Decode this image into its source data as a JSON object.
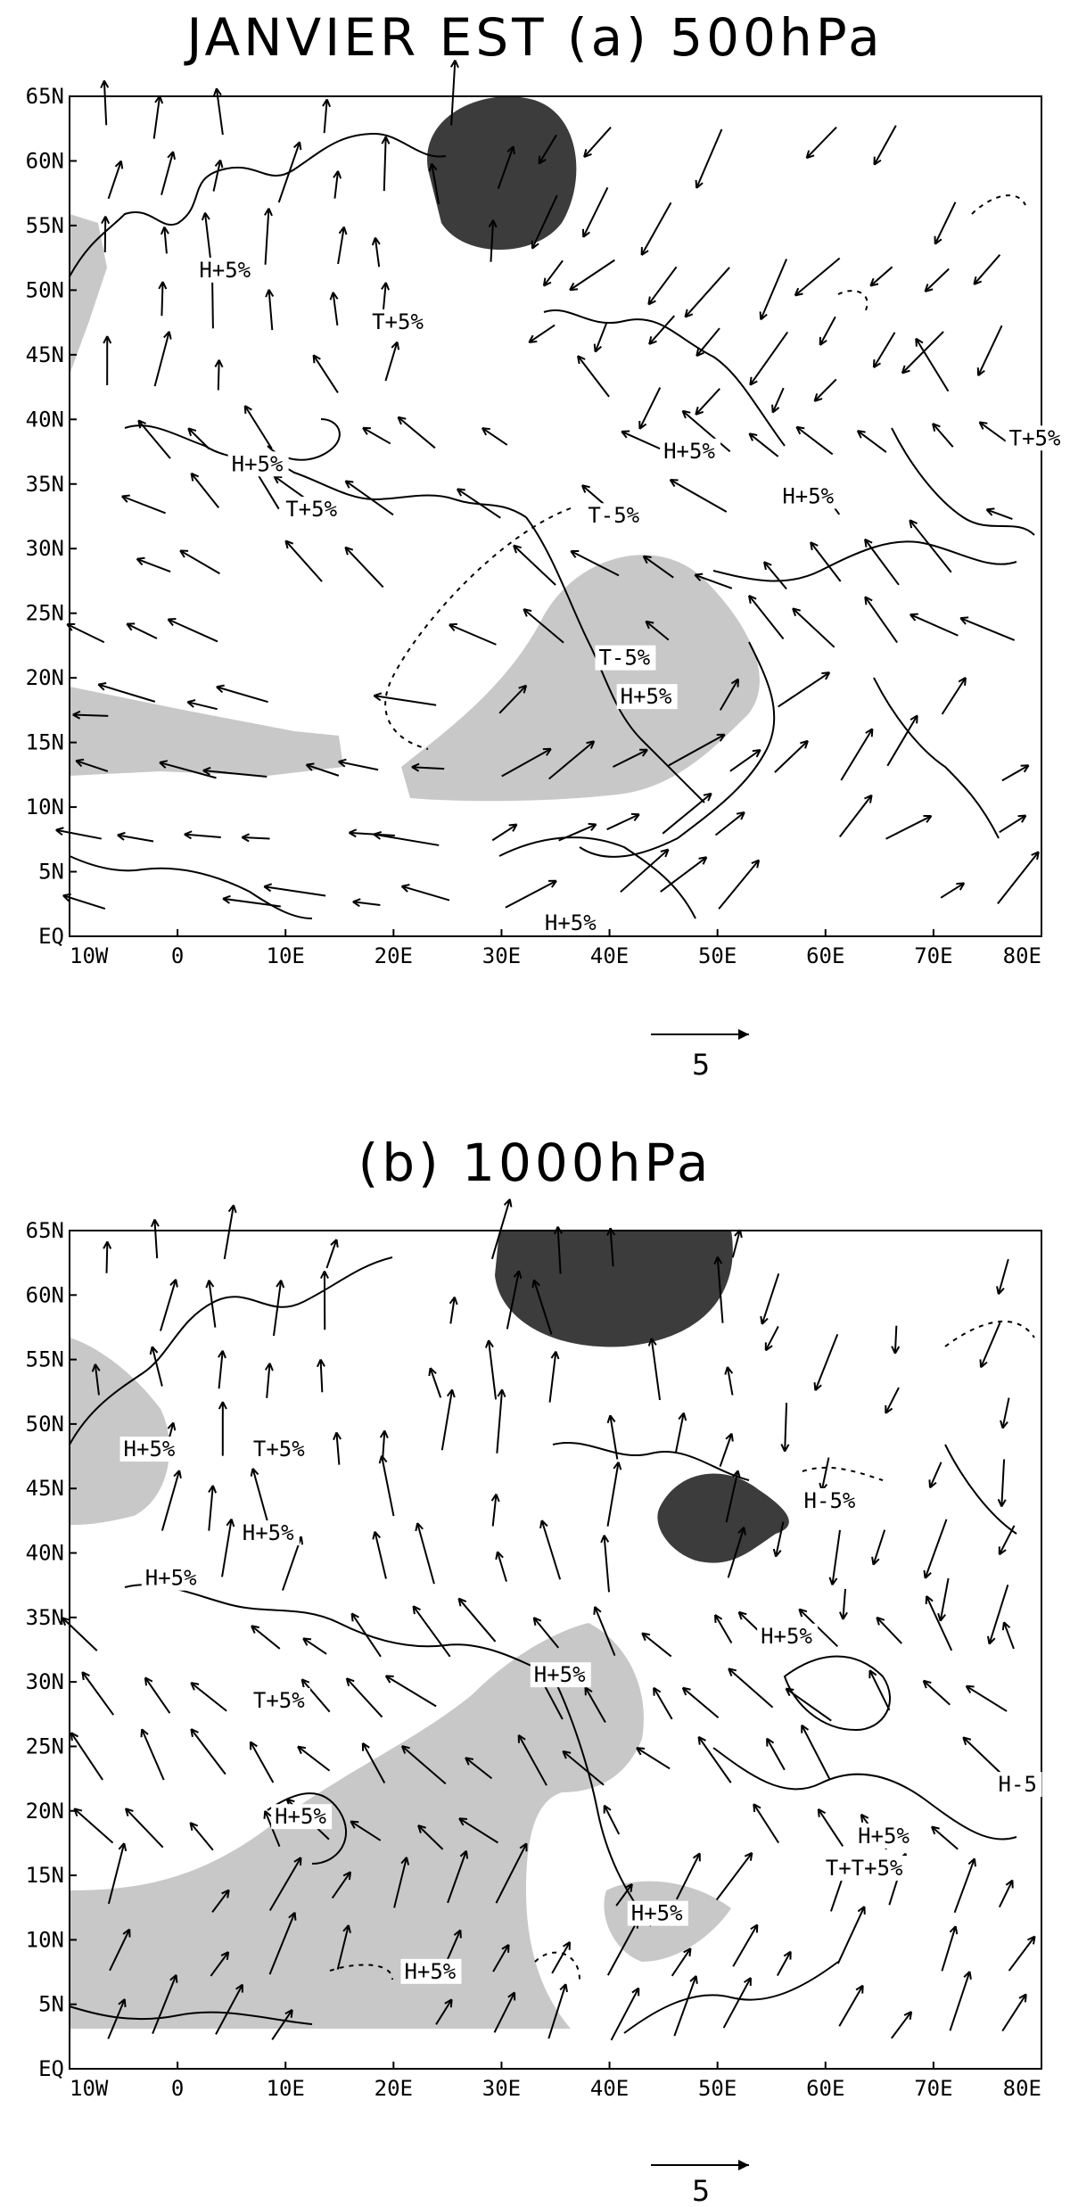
{
  "panel_a": {
    "title": "JANVIER EST (a) 500hPa",
    "lat_ticks": [
      "65N",
      "60N",
      "55N",
      "50N",
      "45N",
      "40N",
      "35N",
      "30N",
      "25N",
      "20N",
      "15N",
      "10N",
      "5N",
      "EQ"
    ],
    "lon_ticks": [
      "10W",
      "0",
      "10E",
      "20E",
      "30E",
      "40E",
      "50E",
      "60E",
      "70E",
      "80E"
    ],
    "labels": [
      {
        "text": "H+5%",
        "lon": 2,
        "lat": 51
      },
      {
        "text": "T+5%",
        "lon": 18,
        "lat": 47
      },
      {
        "text": "H+5%",
        "lon": 5,
        "lat": 36
      },
      {
        "text": "T+5%",
        "lon": 10,
        "lat": 32.5
      },
      {
        "text": "H+5%",
        "lon": 45,
        "lat": 37
      },
      {
        "text": "T+5%",
        "lon": 77,
        "lat": 38
      },
      {
        "text": "H+5%",
        "lon": 56,
        "lat": 33.5
      },
      {
        "text": "T-5%",
        "lon": 38,
        "lat": 32
      },
      {
        "text": "T-5%",
        "lon": 39,
        "lat": 21
      },
      {
        "text": "H+5%",
        "lon": 41,
        "lat": 18
      },
      {
        "text": "H+5%",
        "lon": 34,
        "lat": 0.5
      }
    ],
    "reference_vector": "5"
  },
  "panel_b": {
    "title": "(b) 1000hPa",
    "lat_ticks": [
      "65N",
      "60N",
      "55N",
      "50N",
      "45N",
      "40N",
      "35N",
      "30N",
      "25N",
      "20N",
      "15N",
      "10N",
      "5N",
      "EQ"
    ],
    "lon_ticks": [
      "10W",
      "0",
      "10E",
      "20E",
      "30E",
      "40E",
      "50E",
      "60E",
      "70E",
      "80E"
    ],
    "labels": [
      {
        "text": "H+5%",
        "lon": -5,
        "lat": 47.5
      },
      {
        "text": "T+5%",
        "lon": 7,
        "lat": 47.5
      },
      {
        "text": "H+5%",
        "lon": 6,
        "lat": 41
      },
      {
        "text": "H+5%",
        "lon": -3,
        "lat": 37.5
      },
      {
        "text": "H+5%",
        "lon": 33,
        "lat": 30
      },
      {
        "text": "T+5%",
        "lon": 7,
        "lat": 28
      },
      {
        "text": "H-5%",
        "lon": 58,
        "lat": 43.5
      },
      {
        "text": "H+5%",
        "lon": 54,
        "lat": 33
      },
      {
        "text": "H+5%",
        "lon": 9,
        "lat": 19
      },
      {
        "text": "H-5",
        "lon": 76,
        "lat": 21.5
      },
      {
        "text": "H+5%",
        "lon": 63,
        "lat": 17.5
      },
      {
        "text": "T+T+5%",
        "lon": 60,
        "lat": 15
      },
      {
        "text": "H+5%",
        "lon": 42,
        "lat": 11.5
      },
      {
        "text": "H+5%",
        "lon": 21,
        "lat": 7
      }
    ],
    "reference_vector": "5"
  },
  "colors": {
    "light_shade": "#c8c8c8",
    "dark_shade": "#3c3c3c"
  }
}
